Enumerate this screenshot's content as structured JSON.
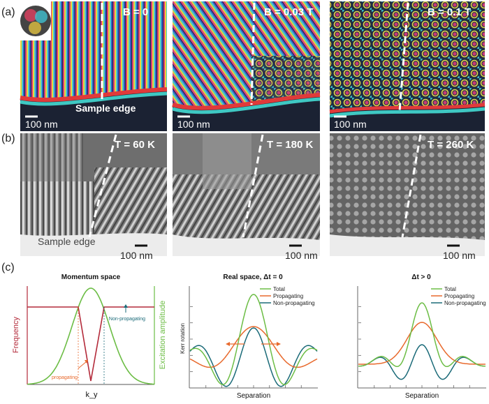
{
  "panel_labels": {
    "a": "(a)",
    "b": "(b)",
    "c": "(c)"
  },
  "row_a": {
    "images": [
      {
        "field": "B = 0",
        "scale": "100 nm",
        "edge_label": "Sample edge"
      },
      {
        "field": "B = 0.03 T",
        "scale": "100 nm"
      },
      {
        "field": "B = 0.1 T",
        "scale": "100 nm"
      }
    ]
  },
  "row_b": {
    "images": [
      {
        "temp": "T = 60 K",
        "scale": "100 nm",
        "edge_label": "Sample edge"
      },
      {
        "temp": "T = 180 K",
        "scale": "100 nm"
      },
      {
        "temp": "T = 260 K",
        "scale": "100 nm"
      }
    ]
  },
  "colors": {
    "total": "#6cbd45",
    "propagating": "#e8692c",
    "nonprop": "#1a6a78",
    "frequency": "#b32a3a",
    "amplitude": "#6cbd45"
  },
  "chart_data": [
    {
      "type": "line",
      "title": "Momentum space",
      "xlabel": "k_y",
      "ylabel_left": "Frequency",
      "ylabel_right": "Excitation amplitude",
      "annotations": [
        "Non-propagating",
        "propagating"
      ],
      "series": [
        {
          "name": "Excitation amplitude",
          "shape": "gaussian"
        },
        {
          "name": "Frequency",
          "shape": "flat with V dip"
        }
      ]
    },
    {
      "type": "line",
      "title": "Real space, Δt = 0",
      "xlabel": "Separation",
      "ylabel": "Kerr rotation",
      "series": [
        {
          "name": "Total"
        },
        {
          "name": "Propagating"
        },
        {
          "name": "Non-propagating"
        }
      ]
    },
    {
      "type": "line",
      "title": "Δt > 0",
      "xlabel": "Separation",
      "series": [
        {
          "name": "Total"
        },
        {
          "name": "Propagating"
        },
        {
          "name": "Non-propagating"
        }
      ]
    }
  ]
}
